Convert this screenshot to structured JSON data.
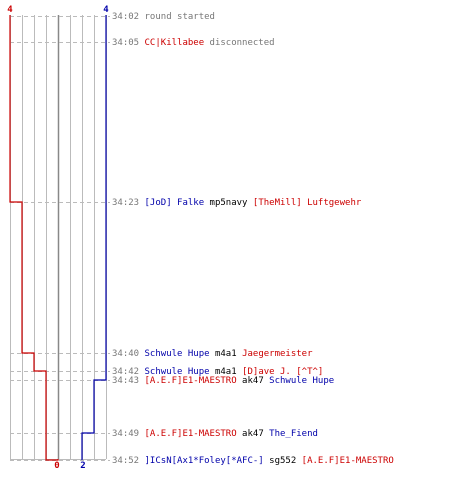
{
  "chart_data": {
    "type": "line",
    "title": "",
    "xlabel": "",
    "ylabel": "",
    "score_range": [
      -4,
      4
    ],
    "grid": true,
    "teams": {
      "blue": {
        "color": "#0000aa",
        "start_label": "4",
        "end_label": "2"
      },
      "red": {
        "color": "#cc0000",
        "start_label": "4",
        "end_label": "0"
      }
    },
    "events": [
      {
        "time": "34:02",
        "parts": [
          {
            "text": "round started",
            "color": "#777777"
          }
        ],
        "blue": 4,
        "red": -4
      },
      {
        "time": "34:05",
        "parts": [
          {
            "text": "CC|Killabee",
            "color": "#cc0000"
          },
          {
            "text": " disconnected",
            "color": "#777777"
          }
        ],
        "blue": 4,
        "red": -4
      },
      {
        "time": "34:23",
        "parts": [
          {
            "text": "[JoD] Falke",
            "color": "#0000aa"
          },
          {
            "text": " mp5navy ",
            "color": "#000000"
          },
          {
            "text": "[TheMill] Luftgewehr",
            "color": "#cc0000"
          }
        ],
        "blue": 4,
        "red": -3
      },
      {
        "time": "34:40",
        "parts": [
          {
            "text": "Schwule Hupe",
            "color": "#0000aa"
          },
          {
            "text": " m4a1 ",
            "color": "#000000"
          },
          {
            "text": "Jaegermeister",
            "color": "#cc0000"
          }
        ],
        "blue": 4,
        "red": -2
      },
      {
        "time": "34:42",
        "parts": [
          {
            "text": "Schwule Hupe",
            "color": "#0000aa"
          },
          {
            "text": " m4a1 ",
            "color": "#000000"
          },
          {
            "text": "[D]ave J. [^T^]",
            "color": "#cc0000"
          }
        ],
        "blue": 4,
        "red": -1
      },
      {
        "time": "34:43",
        "parts": [
          {
            "text": "[A.E.F]E1-MAESTRO",
            "color": "#cc0000"
          },
          {
            "text": " ak47 ",
            "color": "#000000"
          },
          {
            "text": "Schwule Hupe",
            "color": "#0000aa"
          }
        ],
        "blue": 3,
        "red": -1
      },
      {
        "time": "34:49",
        "parts": [
          {
            "text": "[A.E.F]E1-MAESTRO",
            "color": "#cc0000"
          },
          {
            "text": " ak47 ",
            "color": "#000000"
          },
          {
            "text": "The_Fiend",
            "color": "#0000aa"
          }
        ],
        "blue": 2,
        "red": -1
      },
      {
        "time": "34:52",
        "parts": [
          {
            "text": "]ICsN[Ax1*Foley[*AFC-]",
            "color": "#0000aa"
          },
          {
            "text": " sg552 ",
            "color": "#000000"
          },
          {
            "text": "[A.E.F]E1-MAESTRO",
            "color": "#cc0000"
          }
        ],
        "blue": 2,
        "red": 0
      }
    ]
  }
}
